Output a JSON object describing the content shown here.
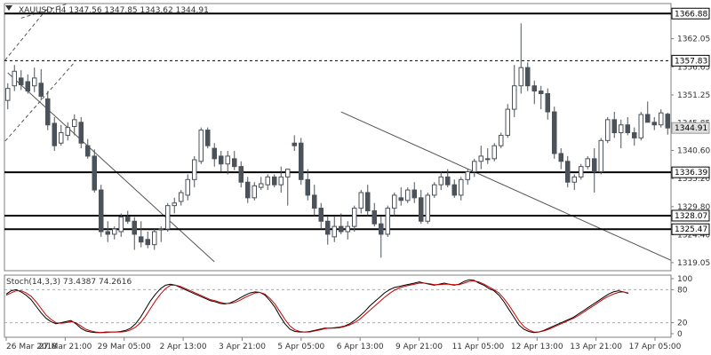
{
  "colors": {
    "candle": "#4b5259",
    "line_dark": "#000000",
    "line_red": "#cc0000",
    "frame": "#7f7f7f",
    "grid_level": "#000000",
    "trendline": "#555555",
    "current_tag_bg": "#e0e0e0"
  },
  "chart_data": [
    {
      "type": "candlestick",
      "header": {
        "symbol": "XAUUSD,H4",
        "ohlc": [
          "1347.56",
          "1347.85",
          "1343.62",
          "1344.91"
        ]
      },
      "ylim": [
        1317.5,
        1368.8
      ],
      "y_ticks": [
        "1362.05",
        "1356.65",
        "1351.25",
        "1345.85",
        "1340.60",
        "1335.20",
        "1329.80",
        "1324.40",
        "1319.05"
      ],
      "x_labels": [
        "26 Mar 2018",
        "27 Mar 21:00",
        "29 Mar 05:00",
        "2 Apr 13:00",
        "3 Apr 21:00",
        "5 Apr 05:00",
        "6 Apr 13:00",
        "9 Apr 21:00",
        "11 Apr 05:00",
        "12 Apr 13:00",
        "13 Apr 21:00",
        "17 Apr 05:00"
      ],
      "candles": [
        [
          1350.2,
          1353.5,
          1348.5,
          1352.5
        ],
        [
          1353.0,
          1357.0,
          1352.0,
          1355.8
        ],
        [
          1354.5,
          1356.0,
          1352.2,
          1353.2
        ],
        [
          1353.8,
          1355.2,
          1351.5,
          1352.0
        ],
        [
          1353.0,
          1356.5,
          1351.8,
          1354.5
        ],
        [
          1353.5,
          1356.2,
          1350.2,
          1351.0
        ],
        [
          1350.5,
          1352.0,
          1344.5,
          1345.5
        ],
        [
          1345.8,
          1347.0,
          1340.5,
          1341.5
        ],
        [
          1342.0,
          1345.5,
          1341.5,
          1344.0
        ],
        [
          1343.5,
          1346.0,
          1342.5,
          1345.0
        ],
        [
          1345.2,
          1347.5,
          1343.5,
          1346.5
        ],
        [
          1346.0,
          1347.0,
          1341.0,
          1342.0
        ],
        [
          1341.5,
          1342.8,
          1339.0,
          1339.5
        ],
        [
          1339.5,
          1340.8,
          1332.5,
          1333.0
        ],
        [
          1333.0,
          1334.0,
          1324.0,
          1325.0
        ],
        [
          1325.0,
          1327.0,
          1323.0,
          1324.5
        ],
        [
          1324.5,
          1326.0,
          1323.5,
          1325.5
        ],
        [
          1325.0,
          1328.5,
          1324.0,
          1327.8
        ],
        [
          1327.8,
          1329.0,
          1326.5,
          1327.0
        ],
        [
          1327.0,
          1327.8,
          1321.5,
          1324.5
        ],
        [
          1324.0,
          1327.0,
          1322.0,
          1323.0
        ],
        [
          1323.5,
          1325.0,
          1321.8,
          1322.5
        ],
        [
          1322.5,
          1325.5,
          1321.5,
          1325.0
        ],
        [
          1325.5,
          1326.0,
          1323.0,
          1325.5
        ],
        [
          1325.5,
          1330.5,
          1325.0,
          1330.0
        ],
        [
          1330.0,
          1331.5,
          1328.5,
          1330.5
        ],
        [
          1330.8,
          1333.0,
          1330.0,
          1332.5
        ],
        [
          1332.0,
          1336.0,
          1331.0,
          1335.0
        ],
        [
          1335.0,
          1339.5,
          1333.5,
          1338.8
        ],
        [
          1338.5,
          1345.0,
          1338.0,
          1344.5
        ],
        [
          1344.5,
          1345.0,
          1341.0,
          1341.5
        ],
        [
          1341.0,
          1342.0,
          1337.5,
          1339.0
        ],
        [
          1339.5,
          1340.5,
          1336.5,
          1338.0
        ],
        [
          1338.0,
          1340.5,
          1336.0,
          1339.5
        ],
        [
          1339.0,
          1340.5,
          1336.8,
          1337.5
        ],
        [
          1337.5,
          1338.5,
          1333.5,
          1334.5
        ],
        [
          1334.5,
          1335.5,
          1330.5,
          1331.5
        ],
        [
          1331.5,
          1334.5,
          1331.0,
          1333.8
        ],
        [
          1333.5,
          1335.5,
          1333.0,
          1334.2
        ],
        [
          1334.0,
          1336.0,
          1333.0,
          1335.5
        ],
        [
          1335.5,
          1336.0,
          1333.5,
          1334.0
        ],
        [
          1334.0,
          1337.5,
          1332.5,
          1335.5
        ],
        [
          1335.5,
          1336.5,
          1330.0,
          1337.0
        ],
        [
          1342.0,
          1343.5,
          1340.5,
          1341.5
        ],
        [
          1342.0,
          1343.0,
          1334.0,
          1335.0
        ],
        [
          1335.0,
          1337.0,
          1331.0,
          1332.0
        ],
        [
          1332.0,
          1334.0,
          1328.0,
          1329.5
        ],
        [
          1329.5,
          1330.5,
          1325.5,
          1327.0
        ],
        [
          1327.0,
          1328.0,
          1322.5,
          1324.5
        ],
        [
          1324.0,
          1328.0,
          1323.0,
          1326.0
        ],
        [
          1326.0,
          1328.5,
          1324.5,
          1325.0
        ],
        [
          1325.0,
          1327.0,
          1323.5,
          1326.0
        ],
        [
          1326.0,
          1330.0,
          1325.0,
          1329.5
        ],
        [
          1329.5,
          1333.0,
          1328.5,
          1332.5
        ],
        [
          1332.5,
          1334.0,
          1328.0,
          1329.0
        ],
        [
          1329.0,
          1330.5,
          1326.0,
          1326.5
        ],
        [
          1326.5,
          1328.0,
          1320.0,
          1324.5
        ],
        [
          1324.5,
          1330.0,
          1324.0,
          1329.5
        ],
        [
          1329.5,
          1332.5,
          1328.0,
          1332.0
        ],
        [
          1331.5,
          1333.5,
          1330.0,
          1331.0
        ],
        [
          1331.0,
          1333.5,
          1330.5,
          1333.0
        ],
        [
          1333.0,
          1334.5,
          1330.5,
          1331.5
        ],
        [
          1331.5,
          1333.0,
          1326.5,
          1327.0
        ],
        [
          1327.0,
          1332.5,
          1326.5,
          1332.0
        ],
        [
          1332.0,
          1334.5,
          1331.5,
          1334.0
        ],
        [
          1334.0,
          1336.5,
          1333.0,
          1335.5
        ],
        [
          1335.5,
          1337.0,
          1333.5,
          1334.0
        ],
        [
          1334.0,
          1335.0,
          1331.5,
          1332.0
        ],
        [
          1332.0,
          1335.5,
          1331.0,
          1335.0
        ],
        [
          1335.0,
          1337.0,
          1334.0,
          1336.5
        ],
        [
          1336.5,
          1339.0,
          1335.5,
          1338.5
        ],
        [
          1338.5,
          1341.5,
          1337.0,
          1339.5
        ],
        [
          1339.0,
          1341.0,
          1338.0,
          1339.0
        ],
        [
          1339.0,
          1342.0,
          1338.5,
          1341.5
        ],
        [
          1341.5,
          1344.0,
          1341.0,
          1343.5
        ],
        [
          1343.5,
          1349.5,
          1343.0,
          1348.5
        ],
        [
          1348.5,
          1357.0,
          1347.0,
          1353.0
        ],
        [
          1353.0,
          1365.0,
          1351.5,
          1356.5
        ],
        [
          1356.5,
          1357.5,
          1352.0,
          1353.0
        ],
        [
          1353.0,
          1354.0,
          1349.5,
          1352.0
        ],
        [
          1352.0,
          1353.0,
          1348.5,
          1351.5
        ],
        [
          1351.5,
          1352.5,
          1346.5,
          1348.0
        ],
        [
          1348.0,
          1349.0,
          1339.0,
          1340.0
        ],
        [
          1340.0,
          1341.0,
          1337.0,
          1338.5
        ],
        [
          1338.5,
          1339.5,
          1333.5,
          1334.5
        ],
        [
          1334.5,
          1336.0,
          1333.0,
          1335.5
        ],
        [
          1335.5,
          1338.0,
          1335.0,
          1337.5
        ],
        [
          1337.5,
          1339.5,
          1337.0,
          1339.0
        ],
        [
          1339.0,
          1341.0,
          1332.5,
          1336.5
        ],
        [
          1336.5,
          1343.0,
          1336.0,
          1342.5
        ],
        [
          1342.5,
          1347.0,
          1342.0,
          1346.5
        ],
        [
          1346.5,
          1348.0,
          1343.0,
          1344.0
        ],
        [
          1344.0,
          1346.5,
          1341.0,
          1345.5
        ],
        [
          1345.5,
          1347.0,
          1343.5,
          1344.0
        ],
        [
          1344.0,
          1345.0,
          1341.5,
          1343.0
        ],
        [
          1343.0,
          1348.0,
          1342.5,
          1347.5
        ],
        [
          1347.5,
          1350.0,
          1346.5,
          1346.0
        ],
        [
          1346.0,
          1347.0,
          1344.5,
          1345.5
        ],
        [
          1345.5,
          1348.5,
          1345.0,
          1347.8
        ],
        [
          1347.56,
          1347.85,
          1343.62,
          1344.91
        ]
      ],
      "levels": [
        {
          "value": 1366.88,
          "label": "1366.88",
          "style": "solid"
        },
        {
          "value": 1357.83,
          "label": "1357.83",
          "style": "dashed"
        },
        {
          "value": 1336.39,
          "label": "1336.39",
          "style": "solid"
        },
        {
          "value": 1328.07,
          "label": "1328.07",
          "style": "solid"
        },
        {
          "value": 1325.47,
          "label": "1325.47",
          "style": "solid"
        }
      ],
      "current_price": {
        "value": 1344.91,
        "label": "1344.91"
      },
      "trendlines": [
        {
          "style": "solid",
          "from": [
            0,
            1355.5
          ],
          "to": [
            31,
            1319.2
          ]
        },
        {
          "style": "solid",
          "from": [
            50,
            1348.0
          ],
          "to": [
            100,
            1319.2
          ]
        },
        {
          "style": "dashed",
          "from": [
            -1,
            1341.5
          ],
          "to": [
            10,
            1357.5
          ]
        },
        {
          "style": "dashed",
          "from": [
            -1,
            1357.0
          ],
          "to": [
            6,
            1368.0
          ]
        },
        {
          "style": "dashed",
          "from": [
            2,
            1366.0
          ],
          "to": [
            9,
            1368.8
          ]
        }
      ]
    },
    {
      "type": "line",
      "title": "Stoch(14,3,3) 73.4387 74.2616",
      "ylim": [
        0,
        100
      ],
      "y_ticks": [
        "100",
        "80",
        "20",
        "0"
      ],
      "series": [
        {
          "name": "main",
          "color": "#000000",
          "values": [
            72,
            78,
            80,
            76,
            70,
            62,
            50,
            38,
            28,
            22,
            18,
            20,
            22,
            24,
            18,
            10,
            5,
            3,
            2,
            2,
            3,
            3,
            3,
            4,
            6,
            10,
            18,
            30,
            45,
            60,
            72,
            82,
            88,
            90,
            88,
            84,
            80,
            76,
            72,
            68,
            64,
            60,
            58,
            55,
            54,
            56,
            60,
            65,
            70,
            74,
            76,
            75,
            70,
            60,
            48,
            32,
            18,
            8,
            4,
            3,
            3,
            4,
            6,
            8,
            10,
            10,
            11,
            12,
            14,
            18,
            24,
            32,
            40,
            50,
            58,
            66,
            74,
            80,
            84,
            86,
            88,
            90,
            92,
            94,
            92,
            90,
            88,
            90,
            92,
            90,
            88,
            90,
            95,
            98,
            97,
            92,
            88,
            82,
            78,
            70,
            58,
            44,
            30,
            16,
            8,
            4,
            2,
            3,
            6,
            10,
            14,
            18,
            22,
            26,
            30,
            36,
            42,
            48,
            54,
            60,
            66,
            72,
            76,
            78,
            76,
            73
          ]
        },
        {
          "name": "signal",
          "color": "#cc0000",
          "values": [
            70,
            74,
            78,
            78,
            74,
            68,
            58,
            46,
            34,
            26,
            20,
            19,
            20,
            22,
            20,
            14,
            8,
            5,
            3,
            2,
            2,
            3,
            3,
            3,
            4,
            7,
            12,
            20,
            32,
            46,
            60,
            72,
            82,
            88,
            88,
            86,
            82,
            78,
            74,
            70,
            66,
            62,
            60,
            57,
            55,
            55,
            57,
            61,
            66,
            70,
            74,
            75,
            72,
            64,
            54,
            40,
            26,
            14,
            7,
            4,
            3,
            3,
            5,
            7,
            9,
            10,
            10,
            11,
            13,
            16,
            20,
            26,
            34,
            42,
            50,
            58,
            66,
            73,
            79,
            83,
            86,
            88,
            90,
            92,
            92,
            91,
            89,
            89,
            90,
            90,
            89,
            89,
            92,
            95,
            96,
            94,
            90,
            85,
            80,
            74,
            64,
            52,
            38,
            24,
            13,
            7,
            3,
            3,
            5,
            8,
            12,
            16,
            20,
            24,
            28,
            33,
            39,
            45,
            51,
            57,
            63,
            68,
            72,
            75,
            76,
            74
          ]
        }
      ],
      "levels": [
        80,
        20
      ]
    }
  ]
}
